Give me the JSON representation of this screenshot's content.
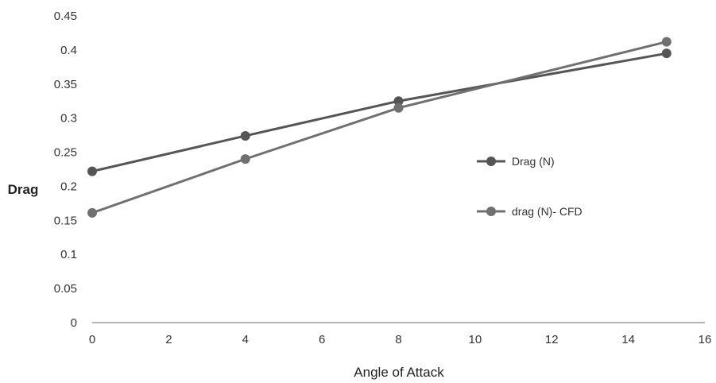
{
  "chart_data": {
    "type": "line",
    "title": "",
    "xlabel": "Angle of Attack",
    "ylabel": "Drag",
    "xlim": [
      0,
      16
    ],
    "ylim": [
      0,
      0.45
    ],
    "xticks": [
      "0",
      "2",
      "4",
      "6",
      "8",
      "10",
      "12",
      "14",
      "16"
    ],
    "yticks": [
      "0",
      "0.05",
      "0.1",
      "0.15",
      "0.2",
      "0.25",
      "0.3",
      "0.35",
      "0.4",
      "0.45"
    ],
    "grid": false,
    "legend_position": "right",
    "x": [
      0,
      4,
      8,
      15
    ],
    "series": [
      {
        "name": "Drag (N)",
        "values": [
          0.222,
          0.274,
          0.325,
          0.395
        ],
        "color": "#555555"
      },
      {
        "name": "drag (N)- CFD",
        "values": [
          0.161,
          0.24,
          0.315,
          0.412
        ],
        "color": "#707070"
      }
    ]
  }
}
